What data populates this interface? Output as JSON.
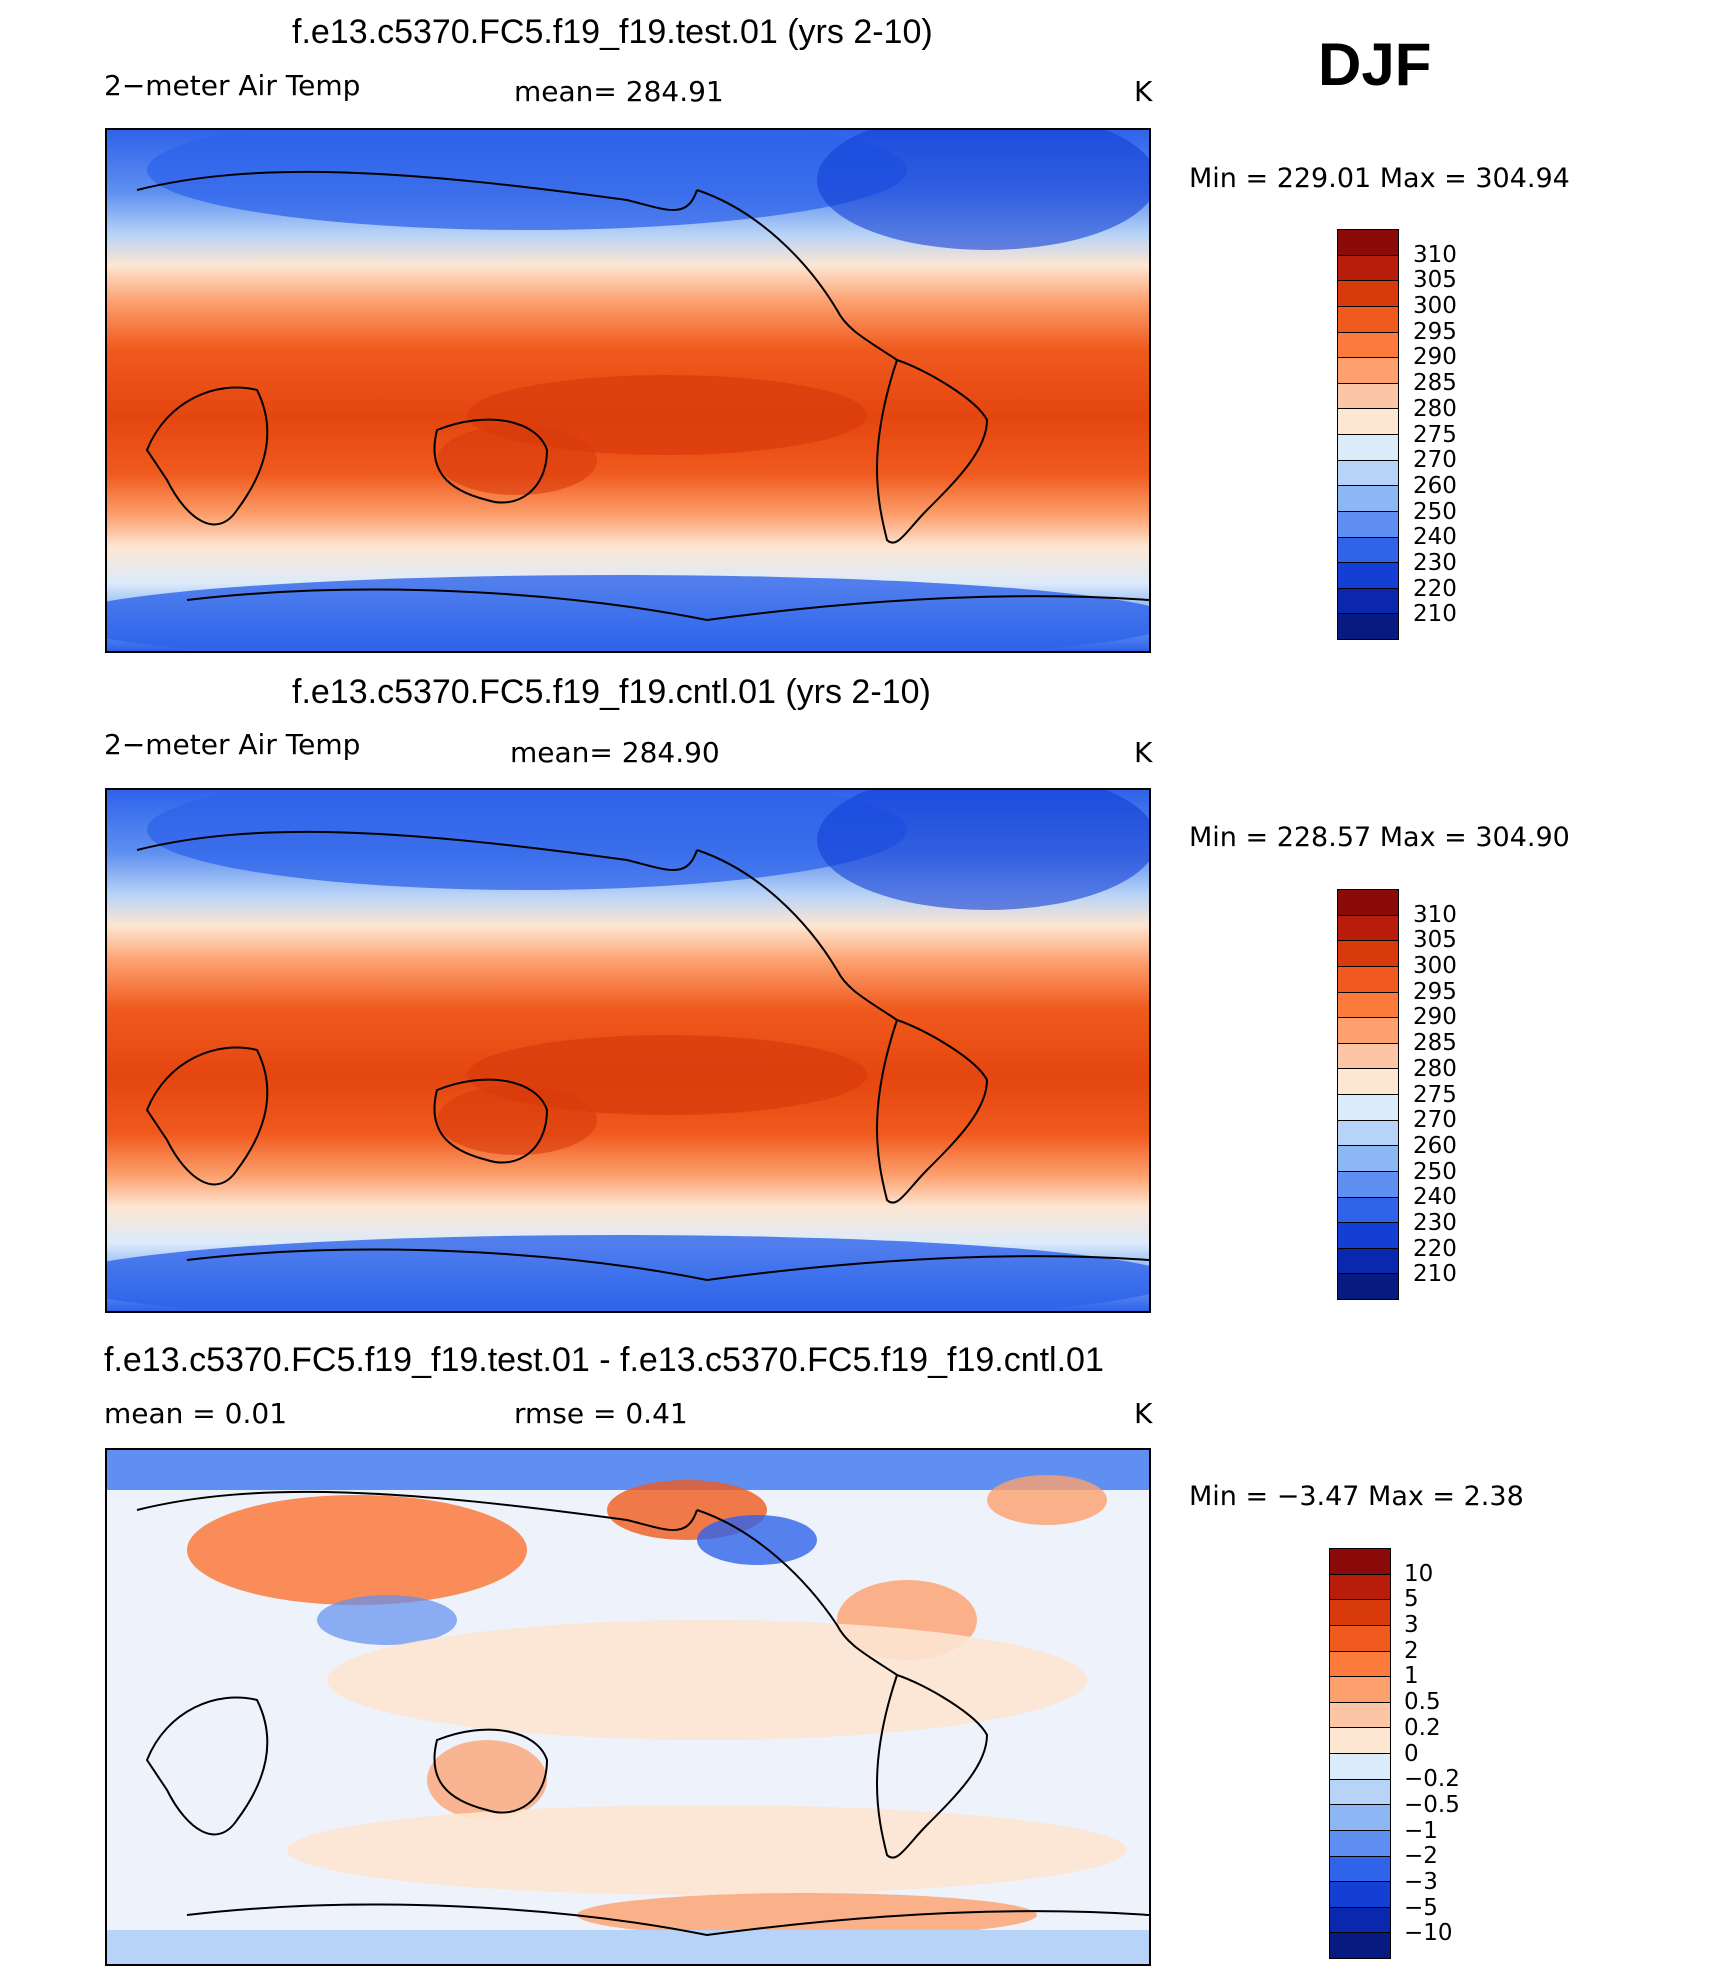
{
  "season": "DJF",
  "panels": [
    {
      "title": "f.e13.c5370.FC5.f19_f19.test.01 (yrs 2-10)",
      "left_label": "2−meter Air Temp",
      "center_label": "mean=  284.91",
      "units": "K",
      "min_max": "Min  =  229.01  Max  =  304.94",
      "colorbar_levels": [
        "310",
        "305",
        "300",
        "295",
        "290",
        "285",
        "280",
        "275",
        "270",
        "260",
        "250",
        "240",
        "230",
        "220",
        "210"
      ],
      "colorbar_colors": [
        "#8b0a0a",
        "#b81c0a",
        "#d93a0c",
        "#f05a1e",
        "#fb7a3c",
        "#fca06e",
        "#fcc6a6",
        "#fde6d2",
        "#dcebfa",
        "#b7d3f7",
        "#8db6f4",
        "#5f8ff0",
        "#2e63ea",
        "#133fd5",
        "#0a27ad",
        "#061a80"
      ]
    },
    {
      "title": "f.e13.c5370.FC5.f19_f19.cntl.01 (yrs 2-10)",
      "left_label": "2−meter Air Temp",
      "center_label": "mean=  284.90",
      "units": "K",
      "min_max": "Min  =  228.57  Max  =  304.90",
      "colorbar_levels": [
        "310",
        "305",
        "300",
        "295",
        "290",
        "285",
        "280",
        "275",
        "270",
        "260",
        "250",
        "240",
        "230",
        "220",
        "210"
      ],
      "colorbar_colors": [
        "#8b0a0a",
        "#b81c0a",
        "#d93a0c",
        "#f05a1e",
        "#fb7a3c",
        "#fca06e",
        "#fcc6a6",
        "#fde6d2",
        "#dcebfa",
        "#b7d3f7",
        "#8db6f4",
        "#5f8ff0",
        "#2e63ea",
        "#133fd5",
        "#0a27ad",
        "#061a80"
      ]
    },
    {
      "title": "f.e13.c5370.FC5.f19_f19.test.01 - f.e13.c5370.FC5.f19_f19.cntl.01",
      "left_label": "mean  =      0.01",
      "center_label": "rmse  =      0.41",
      "units": "K",
      "min_max": "Min  =    −3.47  Max  =        2.38",
      "colorbar_levels": [
        "10",
        "5",
        "3",
        "2",
        "1",
        "0.5",
        "0.2",
        "0",
        "−0.2",
        "−0.5",
        "−1",
        "−2",
        "−3",
        "−5",
        "−10"
      ],
      "colorbar_colors": [
        "#8b0a0a",
        "#b81c0a",
        "#d93a0c",
        "#f05a1e",
        "#fb7a3c",
        "#fca06e",
        "#fcc6a6",
        "#fde6d2",
        "#dcebfa",
        "#b7d3f7",
        "#8db6f4",
        "#5f8ff0",
        "#2e63ea",
        "#133fd5",
        "#0a27ad",
        "#061a80"
      ]
    }
  ]
}
